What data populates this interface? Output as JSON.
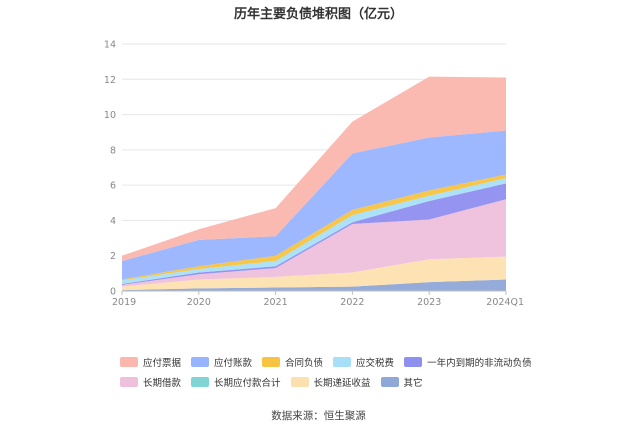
{
  "chart_data": {
    "type": "area",
    "title": "历年主要负债堆积图（亿元）",
    "stacked": true,
    "x": [
      "2019",
      "2020",
      "2021",
      "2022",
      "2023",
      "2024Q1"
    ],
    "ylim": [
      0,
      14
    ],
    "yticks": [
      0,
      2,
      4,
      6,
      8,
      10,
      12,
      14
    ],
    "grid": true,
    "legend_position": "bottom",
    "series": [
      {
        "name": "其它",
        "color": "#8fa8d8",
        "values": [
          0.05,
          0.15,
          0.2,
          0.25,
          0.5,
          0.65
        ]
      },
      {
        "name": "长期递延收益",
        "color": "#fde0b0",
        "values": [
          0.2,
          0.5,
          0.6,
          0.8,
          1.3,
          1.3
        ]
      },
      {
        "name": "长期应付款合计",
        "color": "#80d4d4",
        "values": [
          0.0,
          0.0,
          0.0,
          0.0,
          0.0,
          0.0
        ]
      },
      {
        "name": "长期借款",
        "color": "#eec0dc",
        "values": [
          0.1,
          0.3,
          0.5,
          2.75,
          2.25,
          3.25
        ]
      },
      {
        "name": "一年内到期的非流动负债",
        "color": "#8f8ff0",
        "values": [
          0.05,
          0.1,
          0.1,
          0.1,
          1.05,
          0.9
        ]
      },
      {
        "name": "应交税费",
        "color": "#a8dff8",
        "values": [
          0.2,
          0.2,
          0.3,
          0.4,
          0.3,
          0.3
        ]
      },
      {
        "name": "合同负债",
        "color": "#f7c442",
        "values": [
          0.05,
          0.15,
          0.3,
          0.3,
          0.3,
          0.2
        ]
      },
      {
        "name": "应付账款",
        "color": "#98b4ff",
        "values": [
          1.05,
          1.5,
          1.1,
          3.2,
          3.0,
          2.5
        ]
      },
      {
        "name": "应付票据",
        "color": "#fbb6ad",
        "values": [
          0.3,
          0.6,
          1.6,
          1.8,
          3.45,
          3.0
        ]
      }
    ],
    "legend_order": [
      "应付票据",
      "应付账款",
      "合同负债",
      "应交税费",
      "一年内到期的非流动负债",
      "长期借款",
      "长期应付款合计",
      "长期递延收益",
      "其它"
    ]
  },
  "footer": {
    "source": "数据来源：恒生聚源"
  }
}
